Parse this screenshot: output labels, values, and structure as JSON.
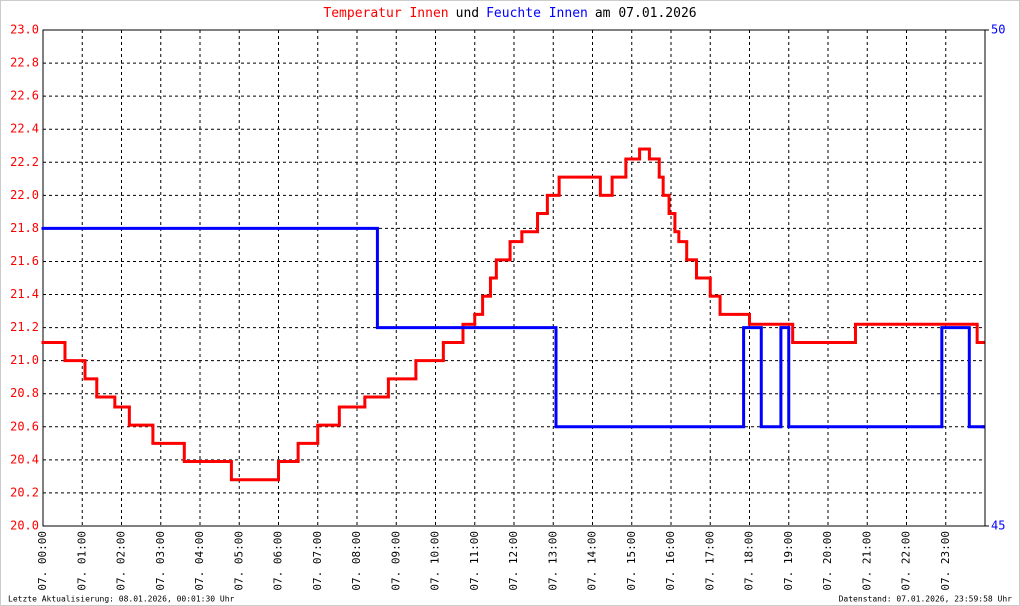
{
  "chart_data": {
    "type": "line",
    "step": true,
    "title_parts": [
      {
        "text": "Temperatur Innen",
        "color": "#ff0000"
      },
      {
        "text": "und",
        "color": "#000000"
      },
      {
        "text": "Feuchte Innen",
        "color": "#0000ff"
      },
      {
        "text": "am 07.01.2026",
        "color": "#000000"
      }
    ],
    "footer_left": "Letzte Aktualisierung: 08.01.2026, 00:01:30 Uhr",
    "footer_right": "Datenstand: 07.01.2026, 23:59:58 Uhr",
    "xlim": [
      0,
      24
    ],
    "xticks": [
      {
        "value": 0,
        "label": "07. 00:00"
      },
      {
        "value": 1,
        "label": "07. 01:00"
      },
      {
        "value": 2,
        "label": "07. 02:00"
      },
      {
        "value": 3,
        "label": "07. 03:00"
      },
      {
        "value": 4,
        "label": "07. 04:00"
      },
      {
        "value": 5,
        "label": "07. 05:00"
      },
      {
        "value": 6,
        "label": "07. 06:00"
      },
      {
        "value": 7,
        "label": "07. 07:00"
      },
      {
        "value": 8,
        "label": "07. 08:00"
      },
      {
        "value": 9,
        "label": "07. 09:00"
      },
      {
        "value": 10,
        "label": "07. 10:00"
      },
      {
        "value": 11,
        "label": "07. 11:00"
      },
      {
        "value": 12,
        "label": "07. 12:00"
      },
      {
        "value": 13,
        "label": "07. 13:00"
      },
      {
        "value": 14,
        "label": "07. 14:00"
      },
      {
        "value": 15,
        "label": "07. 15:00"
      },
      {
        "value": 16,
        "label": "07. 16:00"
      },
      {
        "value": 17,
        "label": "07. 17:00"
      },
      {
        "value": 18,
        "label": "07. 18:00"
      },
      {
        "value": 19,
        "label": "07. 19:00"
      },
      {
        "value": 20,
        "label": "07. 20:00"
      },
      {
        "value": 21,
        "label": "07. 21:00"
      },
      {
        "value": 22,
        "label": "07. 22:00"
      },
      {
        "value": 23,
        "label": "07. 23:00"
      }
    ],
    "ylim": [
      20.0,
      23.0
    ],
    "yticks": [
      {
        "value": 20.0,
        "label": "20.0"
      },
      {
        "value": 20.2,
        "label": "20.2"
      },
      {
        "value": 20.4,
        "label": "20.4"
      },
      {
        "value": 20.6,
        "label": "20.6"
      },
      {
        "value": 20.8,
        "label": "20.8"
      },
      {
        "value": 21.0,
        "label": "21.0"
      },
      {
        "value": 21.2,
        "label": "21.2"
      },
      {
        "value": 21.4,
        "label": "21.4"
      },
      {
        "value": 21.6,
        "label": "21.6"
      },
      {
        "value": 21.8,
        "label": "21.8"
      },
      {
        "value": 22.0,
        "label": "22.0"
      },
      {
        "value": 22.2,
        "label": "22.2"
      },
      {
        "value": 22.4,
        "label": "22.4"
      },
      {
        "value": 22.6,
        "label": "22.6"
      },
      {
        "value": 22.8,
        "label": "22.8"
      },
      {
        "value": 23.0,
        "label": "23.0"
      }
    ],
    "y2lim": [
      45,
      50
    ],
    "y2ticks": [
      45,
      50
    ],
    "y2color": "#0000ff",
    "ycolor": "#ff0000",
    "grid": true,
    "series": [
      {
        "name": "Temperatur Innen",
        "color": "#ff0000",
        "x": [
          0,
          0.56,
          1.07,
          1.37,
          1.83,
          2.2,
          2.8,
          3.6,
          4.8,
          6.0,
          6.5,
          7.0,
          7.55,
          8.2,
          8.8,
          9.5,
          10.2,
          10.7,
          11.0,
          11.2,
          11.4,
          11.55,
          11.9,
          12.2,
          12.6,
          12.85,
          13.15,
          14.2,
          14.5,
          14.85,
          15.2,
          15.45,
          15.7,
          15.8,
          15.95,
          16.1,
          16.2,
          16.4,
          16.65,
          17.0,
          17.25,
          18.0,
          19.1,
          20.7,
          23.8,
          23.95
        ],
        "values": [
          21.11,
          21.0,
          20.89,
          20.78,
          20.72,
          20.61,
          20.5,
          20.39,
          20.28,
          20.39,
          20.5,
          20.61,
          20.72,
          20.78,
          20.89,
          21.0,
          21.11,
          21.22,
          21.28,
          21.39,
          21.5,
          21.61,
          21.72,
          21.78,
          21.89,
          22.0,
          22.11,
          22.0,
          22.11,
          22.22,
          22.28,
          22.22,
          22.11,
          22.0,
          21.89,
          21.78,
          21.72,
          21.61,
          21.5,
          21.39,
          21.28,
          21.22,
          21.11,
          21.22,
          21.11,
          21.11
        ]
      },
      {
        "name": "Feuchte Innen",
        "color": "#0000ff",
        "axis": "y2",
        "x": [
          0,
          8.52,
          13.07,
          17.85,
          18.3,
          18.8,
          19.0,
          22.9,
          23.6,
          23.95
        ],
        "values": [
          48,
          47,
          46,
          47,
          46,
          47,
          46,
          47,
          46,
          46
        ]
      }
    ]
  }
}
